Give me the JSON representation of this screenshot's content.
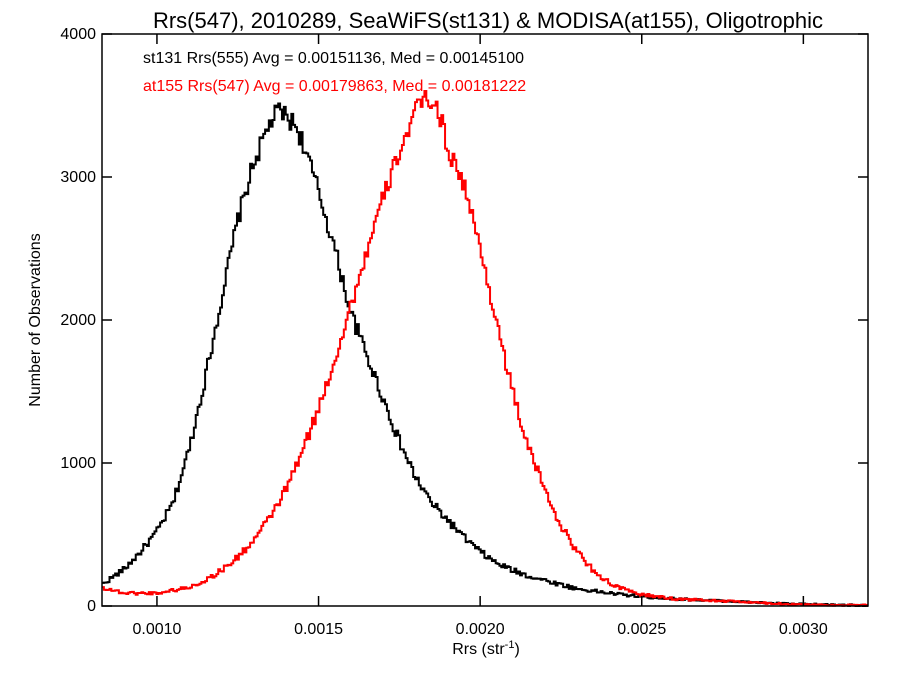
{
  "chart_data": {
    "type": "line",
    "title": "Rrs(547), 2010289, SeaWiFS(st131) & MODISA(at155), Oligotrophic",
    "xlabel_main": "Rrs (str",
    "xlabel_sup": "-1",
    "xlabel_end": ")",
    "ylabel": "Number of Observations",
    "xlim": [
      0.00083,
      0.0032
    ],
    "ylim": [
      0,
      4000
    ],
    "x_ticks": [
      0.001,
      0.0015,
      0.002,
      0.0025,
      0.003
    ],
    "x_tick_labels": [
      "0.0010",
      "0.0015",
      "0.0020",
      "0.0025",
      "0.0030"
    ],
    "y_ticks": [
      0,
      1000,
      2000,
      3000,
      4000
    ],
    "y_tick_labels": [
      "0",
      "1000",
      "2000",
      "3000",
      "4000"
    ],
    "bin_width": 5.8e-06,
    "series": [
      {
        "label": "st131 Rrs(555) Avg = 0.00151136, Med = 0.00145100",
        "color": "#000000",
        "points": [
          [
            0.00083,
            150
          ],
          [
            0.0009,
            260
          ],
          [
            0.00095,
            380
          ],
          [
            0.001,
            520
          ],
          [
            0.00105,
            720
          ],
          [
            0.0011,
            1100
          ],
          [
            0.00115,
            1600
          ],
          [
            0.0012,
            2150
          ],
          [
            0.00125,
            2700
          ],
          [
            0.0013,
            3100
          ],
          [
            0.00135,
            3380
          ],
          [
            0.00138,
            3470
          ],
          [
            0.0014,
            3420
          ],
          [
            0.00143,
            3360
          ],
          [
            0.00145,
            3250
          ],
          [
            0.0015,
            2900
          ],
          [
            0.00155,
            2500
          ],
          [
            0.0016,
            2050
          ],
          [
            0.00165,
            1750
          ],
          [
            0.0017,
            1450
          ],
          [
            0.00175,
            1150
          ],
          [
            0.0018,
            900
          ],
          [
            0.00185,
            720
          ],
          [
            0.0019,
            600
          ],
          [
            0.00195,
            480
          ],
          [
            0.002,
            380
          ],
          [
            0.00205,
            300
          ],
          [
            0.0021,
            250
          ],
          [
            0.00215,
            210
          ],
          [
            0.0022,
            180
          ],
          [
            0.00225,
            150
          ],
          [
            0.0023,
            120
          ],
          [
            0.0024,
            90
          ],
          [
            0.0025,
            65
          ],
          [
            0.0026,
            50
          ],
          [
            0.0027,
            40
          ],
          [
            0.0028,
            30
          ],
          [
            0.0029,
            20
          ],
          [
            0.003,
            12
          ],
          [
            0.0031,
            8
          ],
          [
            0.0032,
            5
          ]
        ]
      },
      {
        "label": "at155 Rrs(547) Avg = 0.00179863, Med = 0.00181222",
        "color": "#ff0000",
        "points": [
          [
            0.00083,
            130
          ],
          [
            0.0009,
            90
          ],
          [
            0.001,
            90
          ],
          [
            0.0011,
            130
          ],
          [
            0.00115,
            180
          ],
          [
            0.0012,
            250
          ],
          [
            0.00125,
            340
          ],
          [
            0.0013,
            460
          ],
          [
            0.00135,
            620
          ],
          [
            0.0014,
            820
          ],
          [
            0.00145,
            1080
          ],
          [
            0.0015,
            1380
          ],
          [
            0.00155,
            1720
          ],
          [
            0.0016,
            2100
          ],
          [
            0.00165,
            2480
          ],
          [
            0.0017,
            2850
          ],
          [
            0.00175,
            3180
          ],
          [
            0.0018,
            3450
          ],
          [
            0.00183,
            3560
          ],
          [
            0.00185,
            3540
          ],
          [
            0.00188,
            3400
          ],
          [
            0.0019,
            3200
          ],
          [
            0.00195,
            2950
          ],
          [
            0.002,
            2500
          ],
          [
            0.00205,
            2000
          ],
          [
            0.0021,
            1500
          ],
          [
            0.00215,
            1100
          ],
          [
            0.0022,
            820
          ],
          [
            0.00225,
            560
          ],
          [
            0.0023,
            380
          ],
          [
            0.00235,
            250
          ],
          [
            0.0024,
            160
          ],
          [
            0.00245,
            110
          ],
          [
            0.0025,
            80
          ],
          [
            0.0026,
            50
          ],
          [
            0.0027,
            40
          ],
          [
            0.0028,
            30
          ],
          [
            0.0029,
            18
          ],
          [
            0.003,
            10
          ],
          [
            0.0031,
            6
          ],
          [
            0.0032,
            4
          ]
        ]
      }
    ]
  }
}
